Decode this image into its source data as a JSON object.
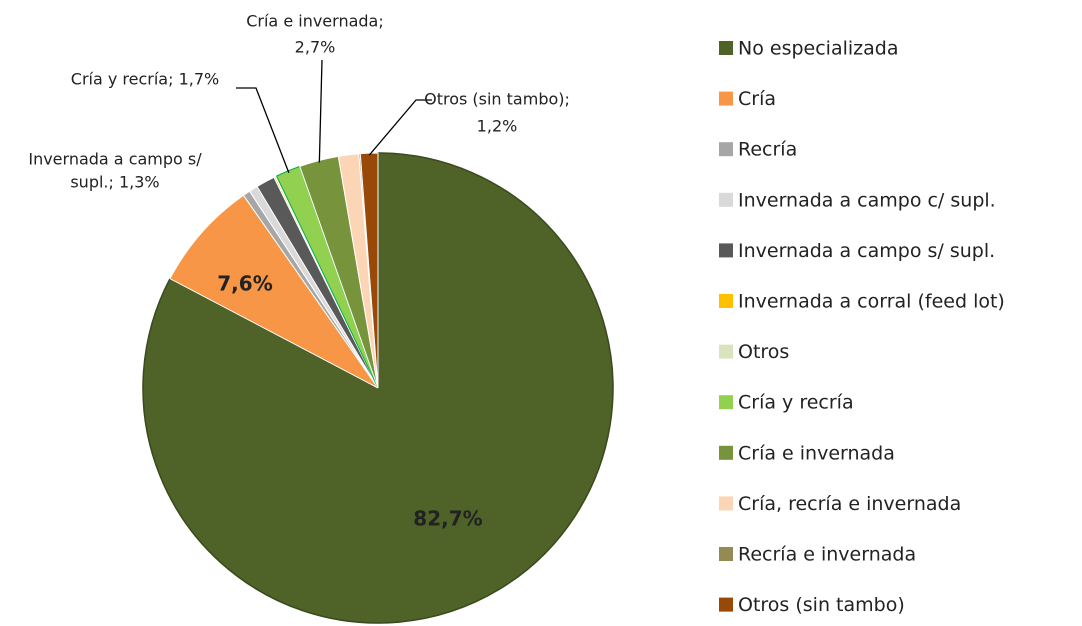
{
  "chart_data": {
    "type": "pie",
    "categories": [
      "No especializada",
      "Cría",
      "Recría",
      "Invernada a campo c/ supl.",
      "Invernada a campo s/ supl.",
      "Invernada a corral (feed lot)",
      "Otros",
      "Cría y recría",
      "Cría e invernada",
      "Cría, recría e invernada",
      "Recría e invernada",
      "Otros (sin tambo)"
    ],
    "values": [
      82.7,
      7.6,
      0.5,
      0.6,
      1.3,
      0.1,
      0.1,
      1.7,
      2.7,
      1.4,
      0.1,
      1.2
    ],
    "value_labels": [
      [
        "82,7%"
      ],
      [
        "7,6%"
      ],
      null,
      null,
      [
        "Invernada a campo s/",
        "supl.; 1,3%"
      ],
      null,
      null,
      [
        "Cría y recría; 1,7%"
      ],
      [
        "Cría e invernada;",
        "2,7%"
      ],
      null,
      null,
      [
        "Otros (sin tambo);",
        "1,2%"
      ]
    ],
    "colors": [
      "#4f6228",
      "#f79646",
      "#a6a6a6",
      "#d9d9d9",
      "#595959",
      "#ffc000",
      "#d7e4bd",
      "#92d050",
      "#77933c",
      "#fcd5b5",
      "#948a54",
      "#984807"
    ],
    "legend": "right"
  }
}
